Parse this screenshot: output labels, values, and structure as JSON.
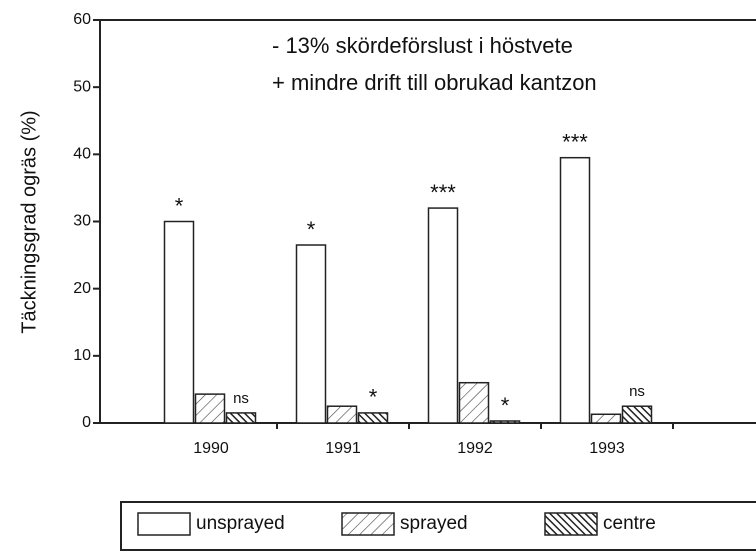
{
  "chart_data": {
    "type": "bar",
    "ylabel": "Täckningsgrad ogräs (%)",
    "annotations": [
      "- 13% skördeförslust i höstvete",
      "+ mindre drift till obrukad kantzon"
    ],
    "categories": [
      "1990",
      "1991",
      "1992",
      "1993"
    ],
    "series": [
      {
        "name": "unsprayed",
        "color": "#ffffff",
        "pattern": "none",
        "values": [
          30,
          26.5,
          32,
          39.5
        ],
        "significance": [
          "*",
          "*",
          "***",
          "***"
        ]
      },
      {
        "name": "sprayed",
        "color": "#ffffff",
        "pattern": "sparse-hatch",
        "values": [
          4.3,
          2.5,
          6,
          1.3
        ],
        "significance": [
          null,
          null,
          null,
          null
        ]
      },
      {
        "name": "centre",
        "color": "#222222",
        "pattern": "dense-hatch",
        "values": [
          1.5,
          1.5,
          0.3,
          2.5
        ],
        "significance": [
          "ns",
          "*",
          "*",
          "ns"
        ]
      }
    ],
    "ylim": [
      0,
      60
    ],
    "yticks": [
      0,
      10,
      20,
      30,
      40,
      50,
      60
    ]
  }
}
